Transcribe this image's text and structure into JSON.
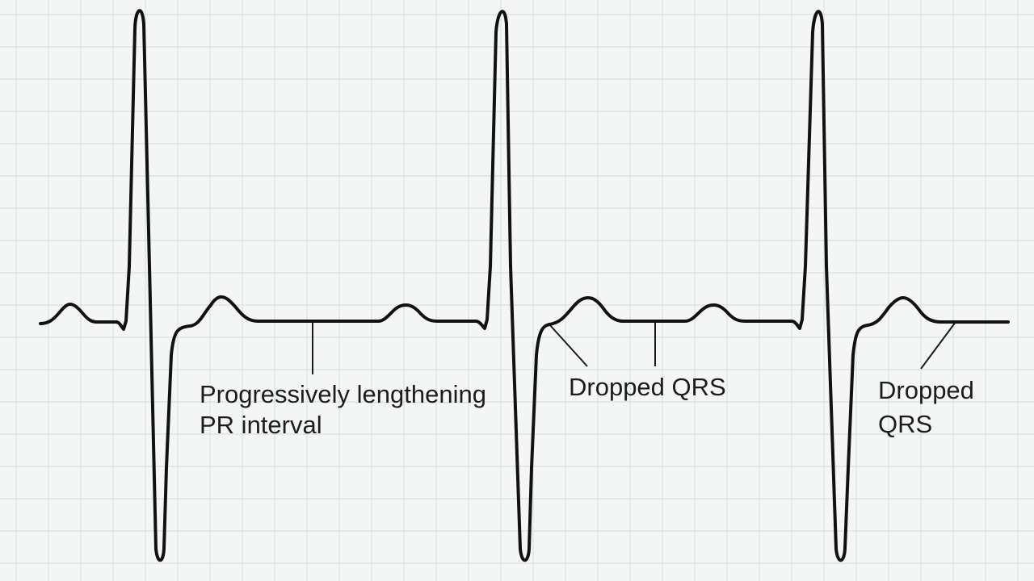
{
  "diagram": {
    "type": "ecg-strip",
    "rhythm_features": [
      "P wave",
      "QRS complex",
      "T wave"
    ],
    "colors": {
      "background": "#f4f6f6",
      "grid": "#d9e0e1",
      "trace": "#111111",
      "text": "#1c1c1c"
    }
  },
  "annotations": {
    "pr_interval": {
      "line1": "Progressively lengthening",
      "line2": "PR interval"
    },
    "dropped_qrs_1": {
      "line1": "Dropped QRS"
    },
    "dropped_qrs_2": {
      "line1": "Dropped",
      "line2": "QRS"
    }
  }
}
